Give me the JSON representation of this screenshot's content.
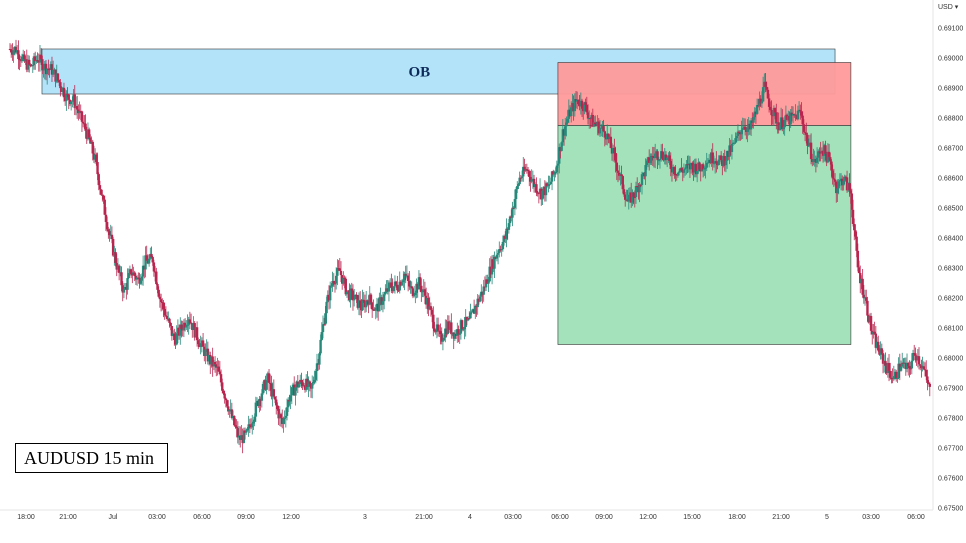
{
  "chart_data": {
    "type": "candlestick",
    "title": "AUDUSD 15 min",
    "currency": "USD ▾",
    "ylim": [
      0.675,
      0.6915
    ],
    "y_ticks": [
      "0.69100",
      "0.69000",
      "0.68900",
      "0.68800",
      "0.68700",
      "0.68600",
      "0.68500",
      "0.68400",
      "0.68300",
      "0.68200",
      "0.68100",
      "0.68000",
      "0.67900",
      "0.67800",
      "0.67700",
      "0.67600",
      "0.67500"
    ],
    "x_ticks": [
      "18:00",
      "21:00",
      "Jul",
      "03:00",
      "06:00",
      "09:00",
      "12:00",
      "3",
      "21:00",
      "4",
      "03:00",
      "06:00",
      "09:00",
      "12:00",
      "15:00",
      "18:00",
      "21:00",
      "5",
      "03:00",
      "06:00"
    ],
    "zones": [
      {
        "label": "OB",
        "type": "order-block",
        "color": "#aee1f9",
        "x_from": 0.045,
        "x_to": 0.895,
        "y_from": 0.6888,
        "y_to": 0.6903
      },
      {
        "label": "",
        "type": "stop-loss",
        "color": "#ff9a9a",
        "x_from": 0.598,
        "x_to": 0.912,
        "y_from": 0.68775,
        "y_to": 0.68985
      },
      {
        "label": "",
        "type": "take-profit",
        "color": "#9ee0b6",
        "x_from": 0.598,
        "x_to": 0.912,
        "y_from": 0.68045,
        "y_to": 0.68775
      }
    ],
    "price_path": [
      0.6903,
      0.6903,
      0.6899,
      0.6897,
      0.69,
      0.6897,
      0.6896,
      0.6892,
      0.6887,
      0.6886,
      0.688,
      0.6874,
      0.6866,
      0.6853,
      0.6841,
      0.6831,
      0.6822,
      0.6829,
      0.6826,
      0.6832,
      0.6833,
      0.682,
      0.6813,
      0.6806,
      0.681,
      0.6814,
      0.6808,
      0.6803,
      0.6799,
      0.6796,
      0.6788,
      0.678,
      0.6773,
      0.6774,
      0.6781,
      0.6788,
      0.6793,
      0.6785,
      0.6778,
      0.6787,
      0.6791,
      0.6792,
      0.6789,
      0.68,
      0.6816,
      0.6826,
      0.6829,
      0.6822,
      0.682,
      0.6817,
      0.682,
      0.6816,
      0.682,
      0.6824,
      0.6824,
      0.6828,
      0.6822,
      0.6825,
      0.682,
      0.6812,
      0.6806,
      0.6811,
      0.6808,
      0.6811,
      0.6812,
      0.6818,
      0.6823,
      0.683,
      0.6836,
      0.684,
      0.685,
      0.686,
      0.6863,
      0.6858,
      0.6855,
      0.6857,
      0.6863,
      0.6875,
      0.6882,
      0.6886,
      0.6884,
      0.6879,
      0.6877,
      0.6875,
      0.6868,
      0.686,
      0.6852,
      0.6855,
      0.686,
      0.6866,
      0.6868,
      0.6868,
      0.6864,
      0.6862,
      0.6863,
      0.6864,
      0.6863,
      0.6866,
      0.6867,
      0.6865,
      0.6868,
      0.6872,
      0.6878,
      0.6876,
      0.6883,
      0.689,
      0.6883,
      0.6878,
      0.6879,
      0.688,
      0.6882,
      0.6872,
      0.6865,
      0.687,
      0.6866,
      0.6857,
      0.686,
      0.6855,
      0.683,
      0.682,
      0.6808,
      0.6802,
      0.6797,
      0.6793,
      0.6798,
      0.6796,
      0.6802,
      0.6797,
      0.6789
    ]
  }
}
